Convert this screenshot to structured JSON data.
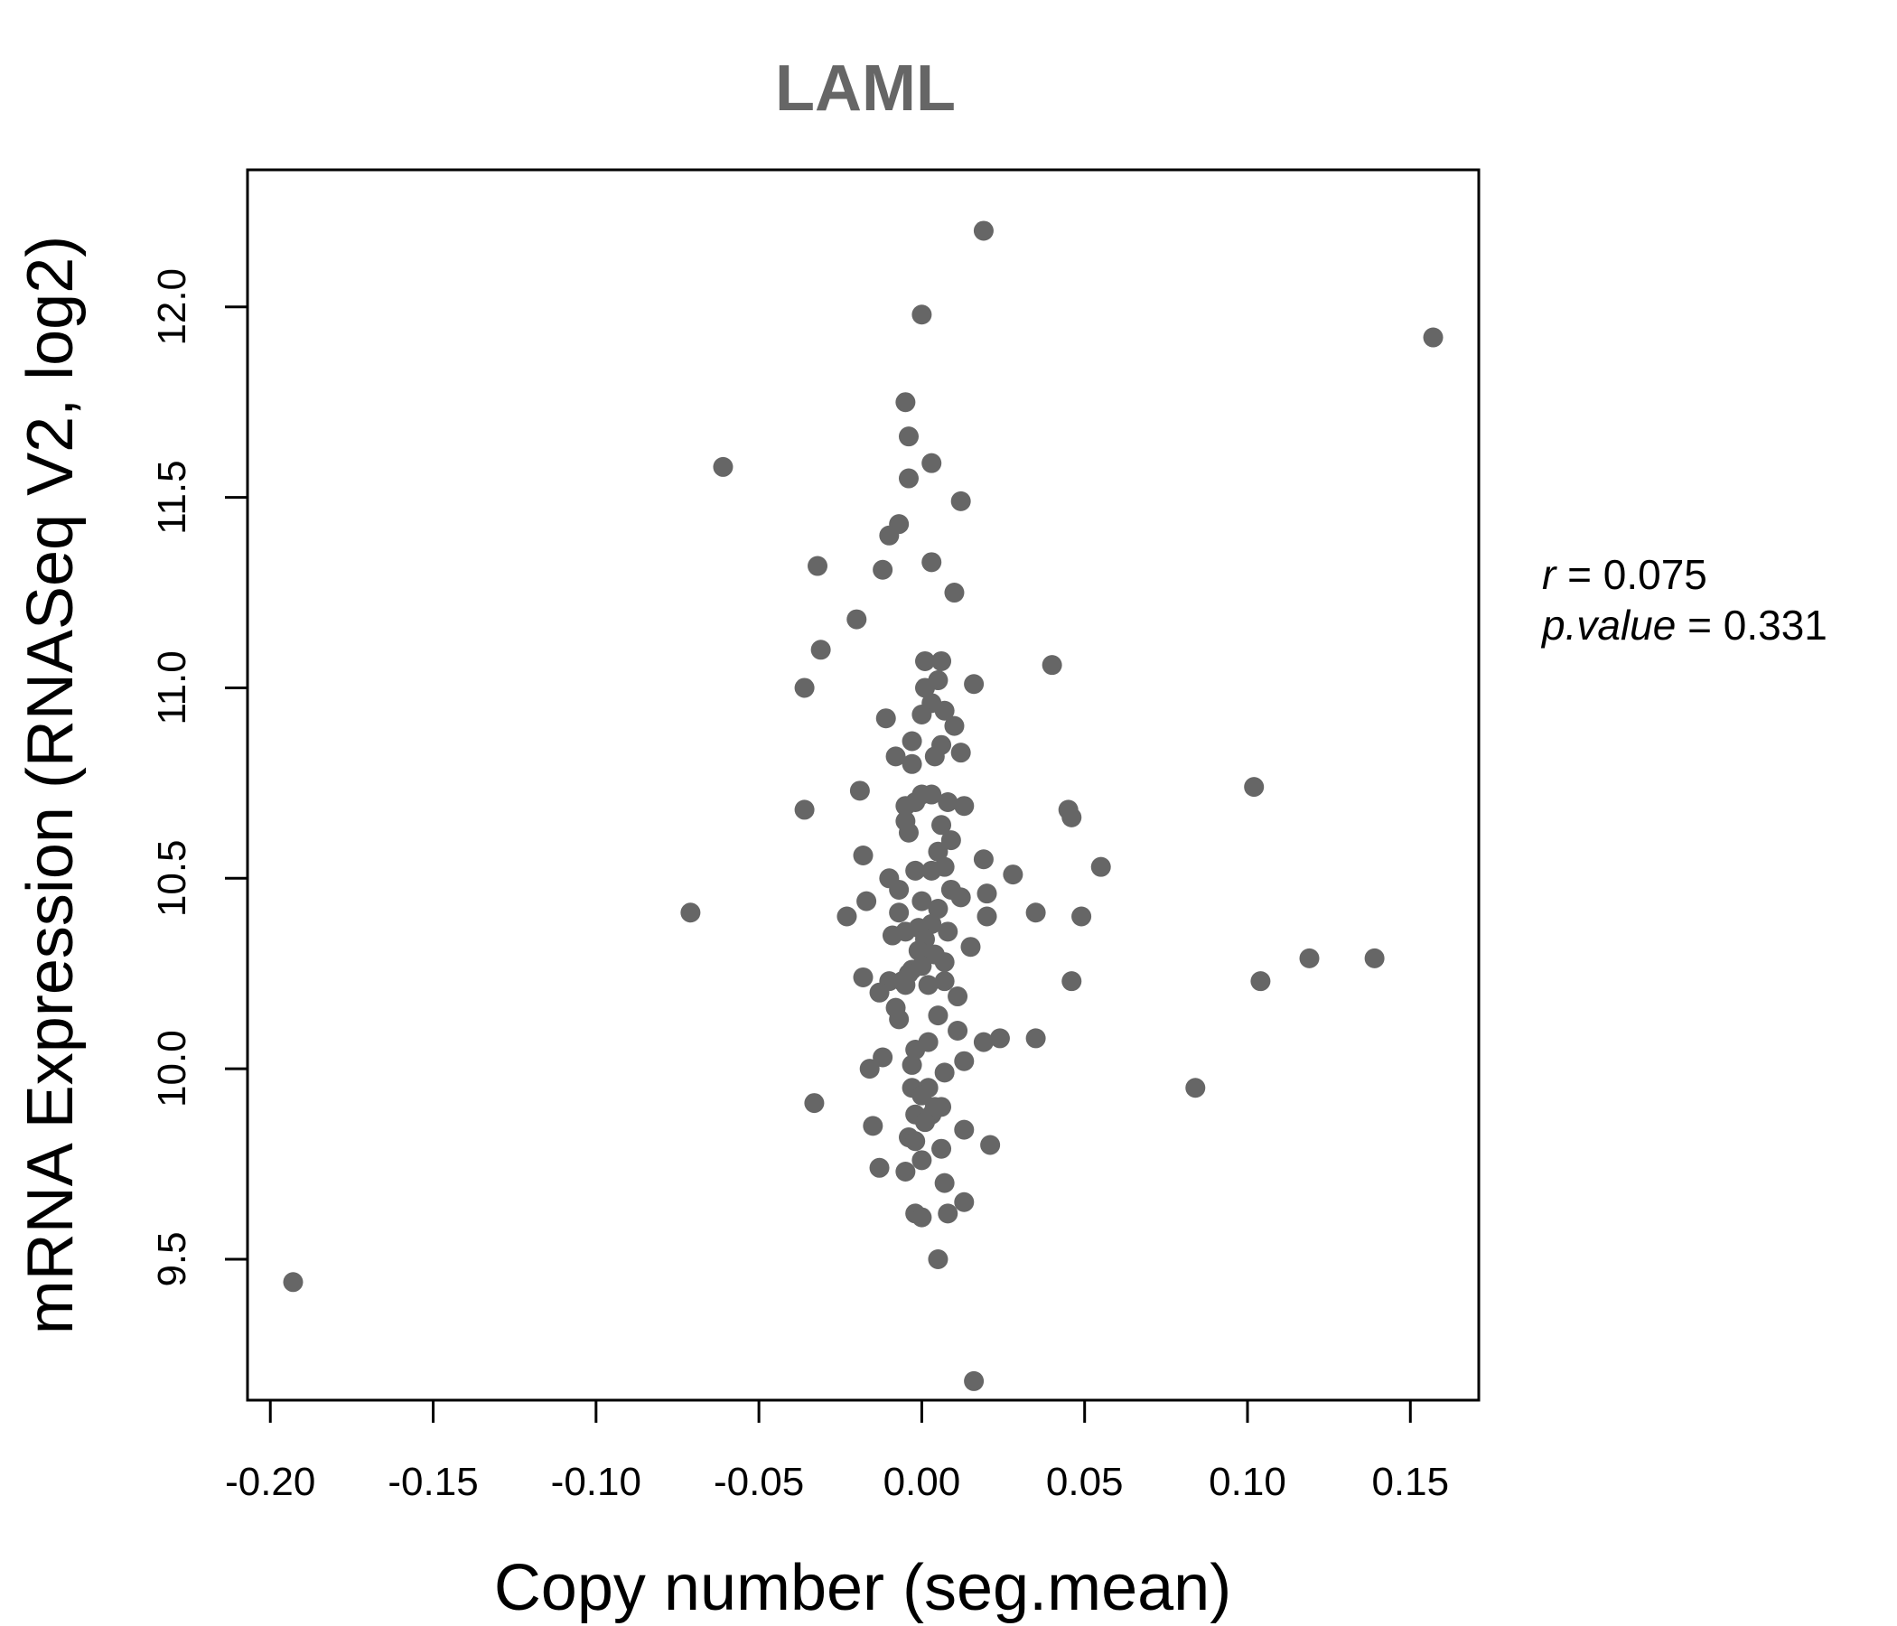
{
  "chart_data": {
    "type": "scatter",
    "title": "LAML",
    "xlabel": "Copy number (seg.mean)",
    "ylabel": "mRNA Expression (RNASeq V2, log2)",
    "xlim": [
      -0.207,
      0.171
    ],
    "ylim": [
      9.13,
      12.36
    ],
    "x_ticks": [
      -0.2,
      -0.15,
      -0.1,
      -0.05,
      0.0,
      0.05,
      0.1,
      0.15
    ],
    "x_tick_labels": [
      "-0.20",
      "-0.15",
      "-0.10",
      "-0.05",
      "0.00",
      "0.05",
      "0.10",
      "0.15"
    ],
    "y_ticks": [
      9.5,
      10.0,
      10.5,
      11.0,
      11.5,
      12.0
    ],
    "y_tick_labels": [
      "9.5",
      "10.0",
      "10.5",
      "11.0",
      "11.5",
      "12.0"
    ],
    "point_color": "#666666",
    "title_color": "#666666",
    "stats": {
      "r_label": "r",
      "r_value": "0.075",
      "p_label": "p.value",
      "p_value": "0.331"
    },
    "points": [
      [
        0.019,
        12.2
      ],
      [
        0.0,
        11.98
      ],
      [
        0.157,
        11.92
      ],
      [
        -0.005,
        11.75
      ],
      [
        -0.004,
        11.66
      ],
      [
        0.003,
        11.59
      ],
      [
        -0.061,
        11.58
      ],
      [
        -0.004,
        11.55
      ],
      [
        0.012,
        11.49
      ],
      [
        -0.007,
        11.43
      ],
      [
        -0.01,
        11.4
      ],
      [
        0.003,
        11.33
      ],
      [
        -0.032,
        11.32
      ],
      [
        -0.012,
        11.31
      ],
      [
        0.01,
        11.25
      ],
      [
        -0.02,
        11.18
      ],
      [
        -0.031,
        11.1
      ],
      [
        0.016,
        11.01
      ],
      [
        0.04,
        11.06
      ],
      [
        -0.036,
        11.0
      ],
      [
        0.001,
        11.07
      ],
      [
        0.006,
        11.07
      ],
      [
        0.005,
        11.02
      ],
      [
        0.001,
        11.0
      ],
      [
        0.003,
        10.96
      ],
      [
        0.007,
        10.94
      ],
      [
        0.01,
        10.9
      ],
      [
        -0.011,
        10.92
      ],
      [
        0.0,
        10.93
      ],
      [
        -0.003,
        10.86
      ],
      [
        0.006,
        10.85
      ],
      [
        0.012,
        10.83
      ],
      [
        -0.008,
        10.82
      ],
      [
        -0.003,
        10.8
      ],
      [
        0.004,
        10.82
      ],
      [
        0.102,
        10.74
      ],
      [
        -0.019,
        10.73
      ],
      [
        -0.005,
        10.69
      ],
      [
        0.0,
        10.72
      ],
      [
        0.008,
        10.7
      ],
      [
        0.013,
        10.69
      ],
      [
        -0.002,
        10.7
      ],
      [
        0.003,
        10.72
      ],
      [
        -0.036,
        10.68
      ],
      [
        0.045,
        10.68
      ],
      [
        0.046,
        10.66
      ],
      [
        -0.005,
        10.65
      ],
      [
        0.006,
        10.64
      ],
      [
        -0.004,
        10.62
      ],
      [
        0.009,
        10.6
      ],
      [
        0.005,
        10.57
      ],
      [
        -0.018,
        10.56
      ],
      [
        0.019,
        10.55
      ],
      [
        0.007,
        10.53
      ],
      [
        0.055,
        10.53
      ],
      [
        -0.002,
        10.52
      ],
      [
        0.028,
        10.51
      ],
      [
        -0.01,
        10.5
      ],
      [
        0.003,
        10.52
      ],
      [
        -0.007,
        10.47
      ],
      [
        0.009,
        10.47
      ],
      [
        0.02,
        10.46
      ],
      [
        0.012,
        10.45
      ],
      [
        -0.017,
        10.44
      ],
      [
        0.0,
        10.44
      ],
      [
        -0.071,
        10.41
      ],
      [
        -0.023,
        10.4
      ],
      [
        -0.007,
        10.41
      ],
      [
        0.005,
        10.42
      ],
      [
        0.02,
        10.4
      ],
      [
        0.035,
        10.41
      ],
      [
        0.049,
        10.4
      ],
      [
        0.003,
        10.38
      ],
      [
        -0.001,
        10.37
      ],
      [
        -0.009,
        10.35
      ],
      [
        -0.005,
        10.36
      ],
      [
        0.008,
        10.36
      ],
      [
        0.001,
        10.34
      ],
      [
        0.015,
        10.32
      ],
      [
        0.139,
        10.29
      ],
      [
        0.119,
        10.29
      ],
      [
        -0.001,
        10.31
      ],
      [
        0.004,
        10.3
      ],
      [
        0.007,
        10.28
      ],
      [
        -0.003,
        10.26
      ],
      [
        0.0,
        10.27
      ],
      [
        -0.018,
        10.24
      ],
      [
        -0.01,
        10.23
      ],
      [
        -0.006,
        10.23
      ],
      [
        -0.004,
        10.25
      ],
      [
        0.046,
        10.23
      ],
      [
        0.104,
        10.23
      ],
      [
        0.007,
        10.23
      ],
      [
        -0.013,
        10.2
      ],
      [
        -0.005,
        10.22
      ],
      [
        0.002,
        10.22
      ],
      [
        0.011,
        10.19
      ],
      [
        -0.008,
        10.16
      ],
      [
        0.005,
        10.14
      ],
      [
        -0.007,
        10.13
      ],
      [
        0.011,
        10.1
      ],
      [
        0.024,
        10.08
      ],
      [
        0.035,
        10.08
      ],
      [
        0.019,
        10.07
      ],
      [
        0.002,
        10.07
      ],
      [
        -0.002,
        10.05
      ],
      [
        -0.012,
        10.03
      ],
      [
        -0.016,
        10.0
      ],
      [
        0.013,
        10.02
      ],
      [
        -0.003,
        10.01
      ],
      [
        0.007,
        9.99
      ],
      [
        0.002,
        9.95
      ],
      [
        -0.003,
        9.95
      ],
      [
        0.084,
        9.95
      ],
      [
        0.0,
        9.93
      ],
      [
        -0.033,
        9.91
      ],
      [
        0.004,
        9.9
      ],
      [
        0.006,
        9.9
      ],
      [
        -0.002,
        9.88
      ],
      [
        0.003,
        9.88
      ],
      [
        0.001,
        9.86
      ],
      [
        -0.015,
        9.85
      ],
      [
        0.013,
        9.84
      ],
      [
        -0.004,
        9.82
      ],
      [
        -0.002,
        9.81
      ],
      [
        0.021,
        9.8
      ],
      [
        0.006,
        9.79
      ],
      [
        0.0,
        9.76
      ],
      [
        -0.013,
        9.74
      ],
      [
        -0.005,
        9.73
      ],
      [
        0.007,
        9.7
      ],
      [
        0.013,
        9.65
      ],
      [
        -0.002,
        9.62
      ],
      [
        0.008,
        9.62
      ],
      [
        0.0,
        9.61
      ],
      [
        0.005,
        9.5
      ],
      [
        -0.193,
        9.44
      ],
      [
        0.016,
        9.18
      ]
    ]
  }
}
